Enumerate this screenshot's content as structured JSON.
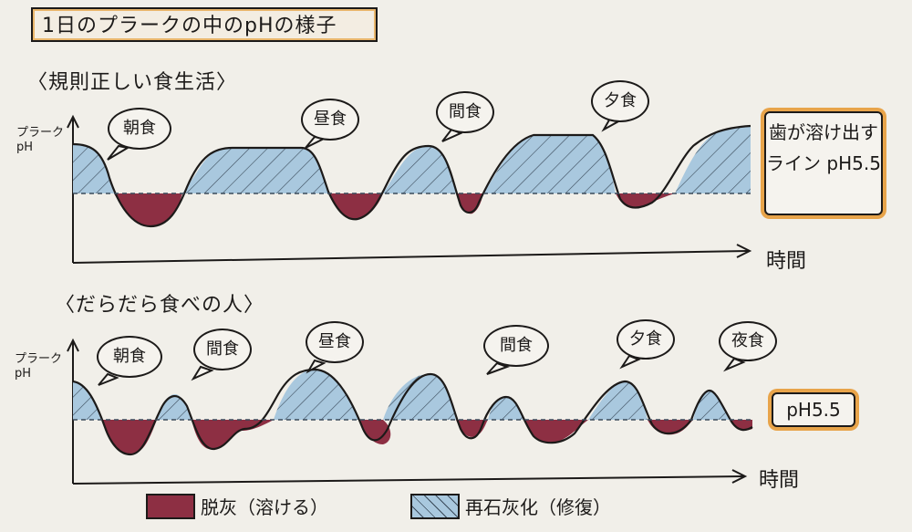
{
  "title": "1日のプラークの中のpHの様子",
  "sections": [
    {
      "heading": "〈規則正しい食生活〉",
      "y_axis_label": "プラーク pH",
      "x_axis_label": "時間",
      "meals": [
        "朝食",
        "昼食",
        "間食",
        "夕食"
      ],
      "threshold_note": "歯が溶け出すライン pH5.5"
    },
    {
      "heading": "〈だらだら食べの人〉",
      "y_axis_label": "プラーク pH",
      "x_axis_label": "時間",
      "meals": [
        "朝食",
        "間食",
        "昼食",
        "間食",
        "夕食",
        "夜食"
      ],
      "threshold_note": "pH5.5"
    }
  ],
  "legend": {
    "demineralization": "脱灰（溶ける）",
    "remineralization": "再石灰化（修復）"
  },
  "colors": {
    "demineralization": "#8d2f43",
    "remineralization": "#a9c8de",
    "threshold_box_border": "#e8a44a"
  }
}
